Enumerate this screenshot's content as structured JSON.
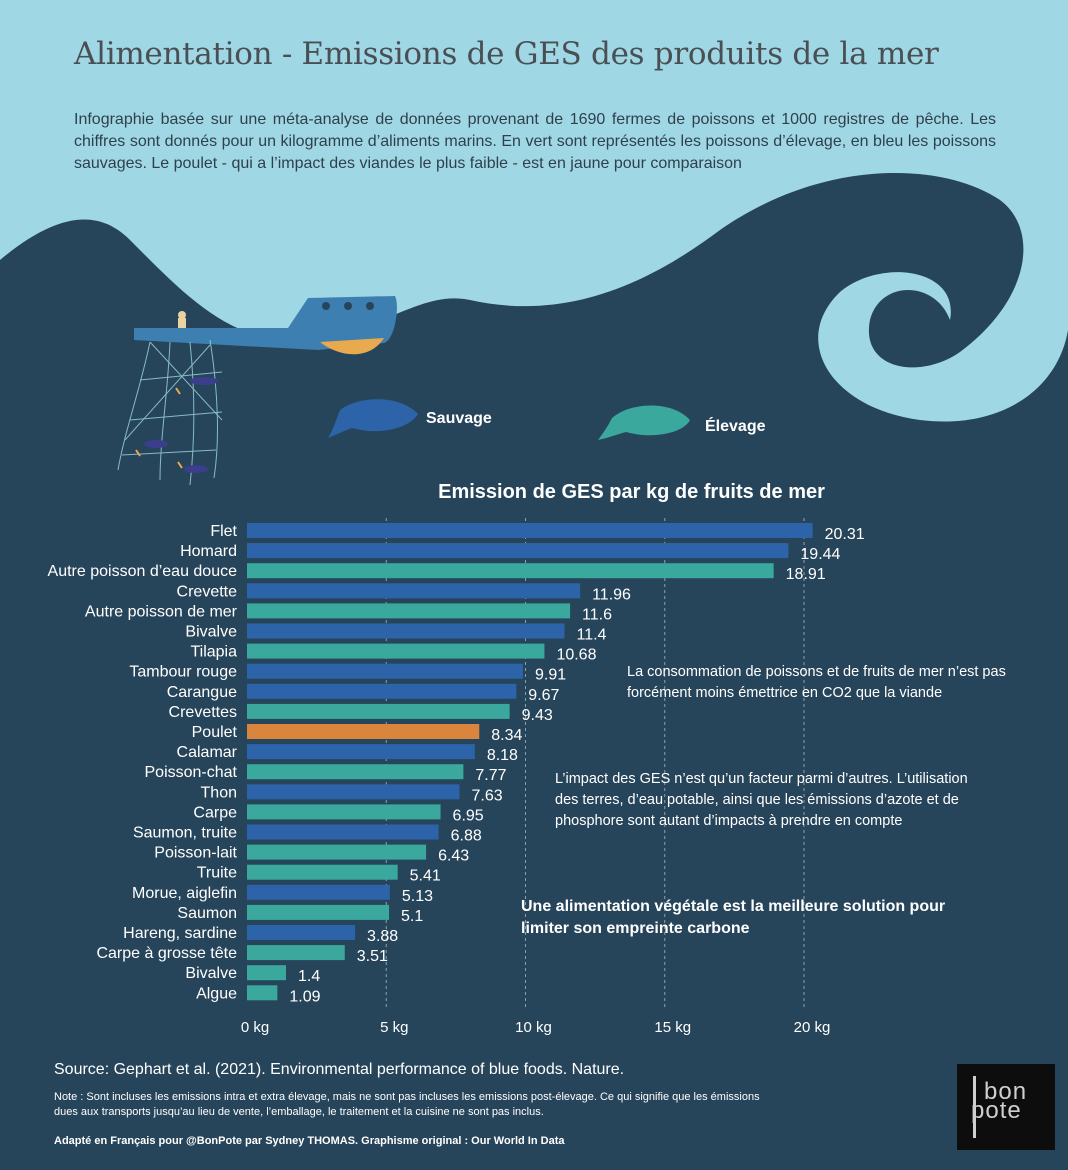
{
  "header": {
    "title": "Alimentation - Emissions de GES des produits de la mer",
    "intro": "Infographie basée sur une méta-analyse de données provenant de 1690 fermes de poissons et 1000 registres de pêche. Les chiffres sont donnés pour un kilogramme d’aliments marins. En vert sont représentés les poissons d’élevage, en bleu les poissons sauvages. Le poulet - qui a l’impact des viandes le plus faible - est en jaune pour comparaison"
  },
  "legend": {
    "wild_label": "Sauvage",
    "farmed_label": "Élevage"
  },
  "colors": {
    "wild": "#2d63a8",
    "farmed": "#3aa89d",
    "chicken": "#d9853d",
    "sky": "#9fd8e4",
    "sea": "#27455a"
  },
  "chart_data": {
    "type": "bar",
    "orientation": "horizontal",
    "title": "Emission de GES par kg de fruits de mer",
    "xlim": [
      0,
      20
    ],
    "x_ticks": [
      0,
      5,
      10,
      15,
      20
    ],
    "x_tick_labels": [
      "0 kg",
      "5 kg",
      "10 kg",
      "15 kg",
      "20 kg"
    ],
    "grid": "vertical dashed at 5, 10, 15, 20",
    "categories": [
      "Flet",
      "Homard",
      "Autre poisson d’eau douce",
      "Crevette",
      "Autre poisson de mer",
      "Bivalve",
      "Tilapia",
      "Tambour rouge",
      "Carangue",
      "Crevettes",
      "Poulet",
      "Calamar",
      "Poisson-chat",
      "Thon",
      "Carpe",
      "Saumon, truite",
      "Poisson-lait",
      "Truite",
      "Morue, aiglefin",
      "Saumon",
      "Hareng, sardine",
      "Carpe à grosse tête",
      "Bivalve",
      "Algue"
    ],
    "values": [
      20.31,
      19.44,
      18.91,
      11.96,
      11.6,
      11.4,
      10.68,
      9.91,
      9.67,
      9.43,
      8.34,
      8.18,
      7.77,
      7.63,
      6.95,
      6.88,
      6.43,
      5.41,
      5.13,
      5.1,
      3.88,
      3.51,
      1.4,
      1.09
    ],
    "value_labels": [
      "20.31",
      "19.44",
      "18.91",
      "11.96",
      "11.6",
      "11.4",
      "10.68",
      "9.91",
      "9.67",
      "9.43",
      "8.34",
      "8.18",
      "7.77",
      "7.63",
      "6.95",
      "6.88",
      "6.43",
      "5.41",
      "5.13",
      "5.1",
      "3.88",
      "3.51",
      "1.4",
      "1.09"
    ],
    "groups": [
      "wild",
      "wild",
      "farmed",
      "wild",
      "farmed",
      "wild",
      "farmed",
      "wild",
      "wild",
      "farmed",
      "chicken",
      "wild",
      "farmed",
      "wild",
      "farmed",
      "wild",
      "farmed",
      "farmed",
      "wild",
      "farmed",
      "wild",
      "farmed",
      "farmed",
      "farmed"
    ]
  },
  "annotations": {
    "note1": "La consommation de poissons et de fruits de mer n’est pas forcément moins émettrice en CO2 que la viande",
    "note2": "L’impact des GES n’est qu’un facteur parmi d’autres. L’utilisation des terres, d’eau potable, ainsi que les émissions d’azote et de phosphore sont autant d’impacts à prendre en compte",
    "note3": "Une alimentation végétale est la meilleure solution pour limiter son empreinte carbone"
  },
  "footer": {
    "source": "Source: Gephart et al. (2021). Environmental performance of blue foods. Nature.",
    "note": "Note : Sont incluses les emissions intra et extra élevage, mais ne sont pas incluses les emissions post-élevage. Ce qui signifie que les émissions dues aux transports jusqu’au lieu de vente, l’emballage, le traitement et la cuisine ne sont pas inclus.",
    "credit": "Adapté en Français pour @BonPote par Sydney THOMAS. Graphisme original : Our World In Data"
  },
  "logo": {
    "line1": "bon",
    "line2": "pote"
  }
}
